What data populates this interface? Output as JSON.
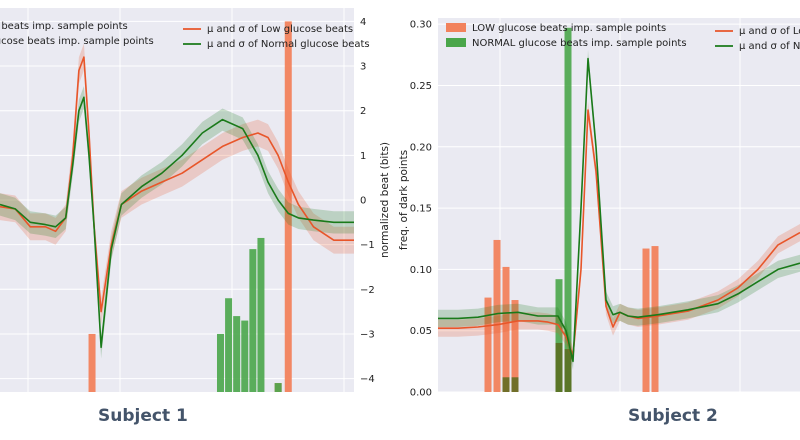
{
  "colors": {
    "plot_bg": "#eaeaf2",
    "grid": "#ffffff",
    "low": "#e8562a",
    "low_bar": "#f2825c",
    "normal": "#1a7a1a",
    "normal_bar": "#4aa64a",
    "caption": "#44546a"
  },
  "captions": {
    "left": "Subject 1",
    "right": "Subject 2"
  },
  "chart_data": [
    {
      "type": "line",
      "panel": "Subject 1",
      "ylabel_right": "normalized beat (bits)",
      "ylim": [
        -4.3,
        4.3
      ],
      "yticks": [
        4,
        3,
        2,
        1,
        0,
        -1,
        -2,
        -3,
        -4
      ],
      "ytick_labels": [
        "4",
        "3",
        "2",
        "1",
        "0",
        "−1",
        "−2",
        "−3",
        "−4"
      ],
      "grid": true,
      "legend": {
        "left_items": [
          {
            "label": "e beats imp. sample points",
            "color": "#f2825c",
            "kind": "bar"
          },
          {
            "label": "lucose beats imp. sample points",
            "color": "#4aa64a",
            "kind": "bar"
          }
        ],
        "right_items": [
          {
            "label": "μ and σ of Low glucose beats",
            "color": "#e8562a",
            "kind": "line"
          },
          {
            "label": "μ and σ of Normal glucose beats",
            "color": "#1a7a1a",
            "kind": "line"
          }
        ],
        "placement": "top"
      },
      "x_domain": [
        0,
        350
      ],
      "series": [
        {
          "name": "μ and σ of Low glucose beats",
          "x": [
            0,
            15,
            30,
            45,
            55,
            65,
            72,
            78,
            83,
            88,
            93,
            100,
            110,
            120,
            140,
            160,
            180,
            200,
            220,
            240,
            255,
            265,
            275,
            285,
            295,
            310,
            330,
            350
          ],
          "y": [
            -0.15,
            -0.2,
            -0.6,
            -0.6,
            -0.7,
            -0.4,
            1.0,
            2.9,
            3.2,
            1.5,
            -0.6,
            -2.5,
            -1.0,
            -0.1,
            0.2,
            0.4,
            0.6,
            0.9,
            1.2,
            1.4,
            1.5,
            1.4,
            1.0,
            0.4,
            -0.1,
            -0.6,
            -0.9,
            -0.9
          ],
          "sigma": 0.3
        },
        {
          "name": "μ and σ of Normal glucose beats",
          "x": [
            0,
            15,
            30,
            45,
            55,
            65,
            72,
            78,
            83,
            88,
            93,
            100,
            110,
            120,
            140,
            160,
            180,
            200,
            220,
            240,
            255,
            265,
            275,
            285,
            295,
            310,
            330,
            350
          ],
          "y": [
            -0.1,
            -0.2,
            -0.5,
            -0.55,
            -0.6,
            -0.4,
            0.8,
            2.0,
            2.3,
            1.0,
            -0.6,
            -3.3,
            -1.1,
            -0.1,
            0.3,
            0.6,
            1.0,
            1.5,
            1.8,
            1.6,
            1.0,
            0.4,
            0.0,
            -0.3,
            -0.4,
            -0.45,
            -0.5,
            -0.5
          ],
          "sigma": 0.25
        }
      ],
      "bars_low": [
        {
          "x": 91,
          "top": -3.0
        },
        {
          "x": 285,
          "top": 4.0
        },
        {
          "x": 275,
          "top": -4.1
        }
      ],
      "bars_normal": [
        {
          "x": 218,
          "top": -3.0
        },
        {
          "x": 226,
          "top": -2.2
        },
        {
          "x": 234,
          "top": -2.6
        },
        {
          "x": 242,
          "top": -2.7
        },
        {
          "x": 250,
          "top": -1.1
        },
        {
          "x": 258,
          "top": -0.85
        },
        {
          "x": 275,
          "top": -4.1
        }
      ]
    },
    {
      "type": "line",
      "panel": "Subject 2",
      "ylabel": "freq. of dark points",
      "ylim": [
        0.0,
        0.305
      ],
      "yticks": [
        0.3,
        0.25,
        0.2,
        0.15,
        0.1,
        0.05,
        0.0
      ],
      "ytick_labels": [
        "0.30",
        "0.25",
        "0.20",
        "0.15",
        "0.10",
        "0.05",
        "0.00"
      ],
      "grid": true,
      "legend": {
        "left_items": [
          {
            "label": "LOW glucose beats imp. sample points",
            "color": "#f2825c",
            "kind": "bar"
          },
          {
            "label": "NORMAL glucose beats imp. sample points",
            "color": "#4aa64a",
            "kind": "bar"
          }
        ],
        "right_items": [
          {
            "label": "μ and σ of Lo",
            "color": "#e8562a",
            "kind": "line"
          },
          {
            "label": "μ and σ of No",
            "color": "#1a7a1a",
            "kind": "line"
          }
        ],
        "placement": "top"
      },
      "x_domain": [
        0,
        362
      ],
      "series": [
        {
          "name": "μ and σ of Lo",
          "x": [
            0,
            20,
            40,
            60,
            80,
            100,
            110,
            120,
            128,
            135,
            143,
            150,
            158,
            168,
            175,
            182,
            190,
            200,
            220,
            250,
            280,
            300,
            320,
            340,
            362
          ],
          "y": [
            0.052,
            0.052,
            0.053,
            0.055,
            0.058,
            0.058,
            0.057,
            0.055,
            0.045,
            0.03,
            0.1,
            0.23,
            0.18,
            0.07,
            0.053,
            0.065,
            0.062,
            0.06,
            0.062,
            0.066,
            0.075,
            0.085,
            0.1,
            0.12,
            0.13
          ],
          "sigma": 0.007
        },
        {
          "name": "μ and σ of No",
          "x": [
            0,
            20,
            40,
            60,
            80,
            100,
            110,
            120,
            128,
            135,
            143,
            150,
            158,
            168,
            175,
            182,
            190,
            200,
            220,
            250,
            280,
            300,
            320,
            340,
            362
          ],
          "y": [
            0.06,
            0.06,
            0.061,
            0.064,
            0.065,
            0.062,
            0.062,
            0.062,
            0.05,
            0.025,
            0.15,
            0.272,
            0.2,
            0.075,
            0.063,
            0.065,
            0.062,
            0.061,
            0.063,
            0.067,
            0.072,
            0.08,
            0.09,
            0.1,
            0.105
          ],
          "sigma": 0.007
        }
      ],
      "bars_low": [
        {
          "x": 50,
          "top": 0.077
        },
        {
          "x": 59,
          "top": 0.124
        },
        {
          "x": 68,
          "top": 0.102
        },
        {
          "x": 77,
          "top": 0.075
        },
        {
          "x": 208,
          "top": 0.117
        },
        {
          "x": 217,
          "top": 0.119
        }
      ],
      "bars_normal": [
        {
          "x": 121,
          "top": 0.092
        },
        {
          "x": 130,
          "top": 0.297
        }
      ],
      "bars_overlap": [
        {
          "x": 68,
          "top": 0.012
        },
        {
          "x": 77,
          "top": 0.012
        },
        {
          "x": 121,
          "top": 0.04
        },
        {
          "x": 130,
          "top": 0.035
        }
      ]
    }
  ]
}
